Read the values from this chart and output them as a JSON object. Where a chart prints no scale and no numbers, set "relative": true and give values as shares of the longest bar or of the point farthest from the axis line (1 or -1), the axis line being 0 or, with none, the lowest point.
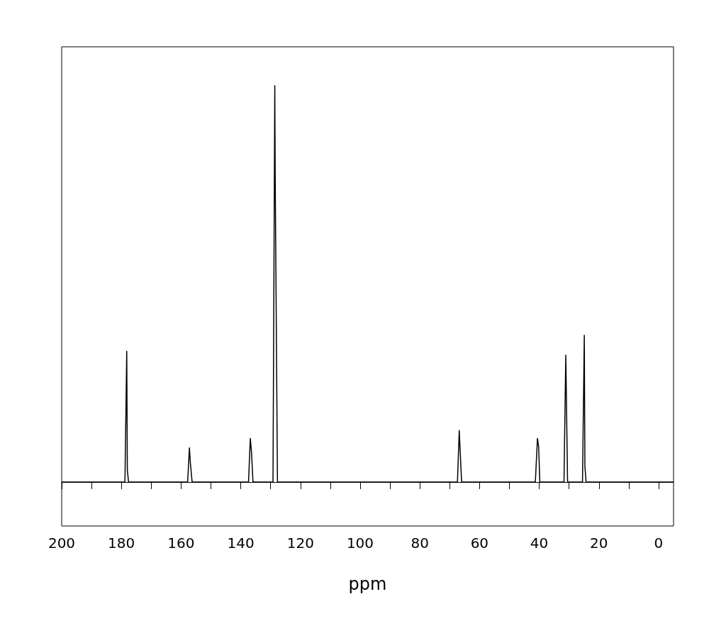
{
  "chart_data": {
    "type": "line",
    "xlabel": "ppm",
    "relative": true,
    "grid": false,
    "marker": "none",
    "line_style": "solid",
    "xlim": [
      200,
      -5
    ],
    "xticks": [
      200,
      {
        "value": 190,
        "label": null
      },
      180,
      {
        "value": 170,
        "label": null
      },
      160,
      {
        "value": 150,
        "label": null
      },
      140,
      {
        "value": 130,
        "label": null
      },
      120,
      {
        "value": 110,
        "label": null
      },
      100,
      {
        "value": 90,
        "label": null
      },
      80,
      {
        "value": 70,
        "label": null
      },
      60,
      {
        "value": 50,
        "label": null
      },
      40,
      {
        "value": 30,
        "label": null
      },
      20,
      {
        "value": 10,
        "label": null
      },
      0
    ],
    "series": [
      {
        "color": "#000000",
        "x": [
          200,
          178.8,
          178.2,
          178.0,
          177.6,
          157.8,
          157.2,
          156.9,
          156.3,
          137.4,
          136.8,
          136.4,
          135.9,
          129.2,
          128.6,
          128.45,
          128.3,
          127.7,
          67.4,
          66.8,
          66.5,
          66.0,
          41.3,
          40.6,
          40.2,
          39.8,
          31.7,
          31.1,
          30.5,
          25.5,
          24.9,
          24.7,
          24.3,
          -5
        ],
        "values": [
          0,
          0,
          0.33,
          0.03,
          0,
          0,
          0.086,
          0.05,
          0,
          0,
          0.11,
          0.075,
          0,
          0,
          1.0,
          0.76,
          0.76,
          0,
          0,
          0.13,
          0.08,
          0,
          0,
          0.11,
          0.09,
          0,
          0,
          0.32,
          0,
          0,
          0.37,
          0.04,
          0,
          0
        ]
      }
    ]
  }
}
